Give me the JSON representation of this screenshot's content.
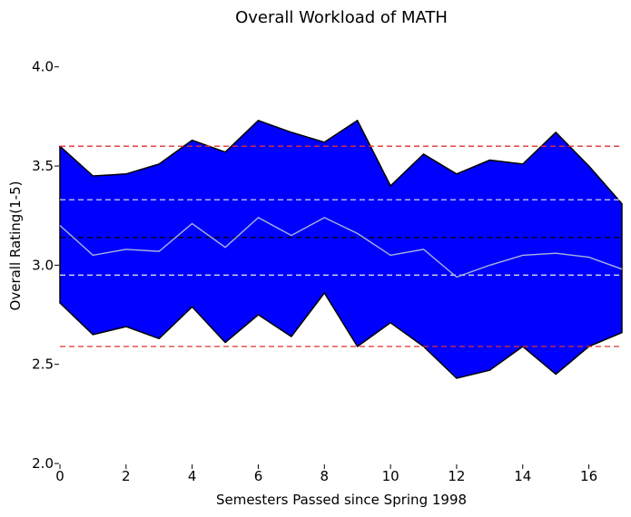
{
  "chart_data": {
    "type": "area",
    "title": "Overall Workload of MATH",
    "xlabel": "Semesters Passed since Spring 1998",
    "ylabel": "Overall Rating(1-5)",
    "xlim": [
      0,
      17
    ],
    "ylim": [
      2.0,
      4.2
    ],
    "xticks": [
      0,
      2,
      4,
      6,
      8,
      10,
      12,
      14,
      16
    ],
    "yticks": [
      2.0,
      2.5,
      3.0,
      3.5,
      4.0
    ],
    "x": [
      0,
      1,
      2,
      3,
      4,
      5,
      6,
      7,
      8,
      9,
      10,
      11,
      12,
      13,
      14,
      15,
      16,
      17
    ],
    "band_upper": [
      3.6,
      3.45,
      3.46,
      3.51,
      3.63,
      3.57,
      3.73,
      3.67,
      3.62,
      3.73,
      3.4,
      3.56,
      3.46,
      3.53,
      3.51,
      3.67,
      3.5,
      3.31
    ],
    "band_lower": [
      2.81,
      2.65,
      2.69,
      2.63,
      2.79,
      2.61,
      2.75,
      2.64,
      2.86,
      2.59,
      2.71,
      2.59,
      2.43,
      2.47,
      2.59,
      2.45,
      2.59,
      2.66
    ],
    "mean_line": [
      3.2,
      3.05,
      3.08,
      3.07,
      3.21,
      3.09,
      3.24,
      3.15,
      3.24,
      3.16,
      3.05,
      3.08,
      2.94,
      3.0,
      3.05,
      3.06,
      3.04,
      2.98
    ],
    "reference_lines": [
      {
        "y": 3.6,
        "color": "#e03030",
        "style": "dashed"
      },
      {
        "y": 3.33,
        "color": "#d8d8e8",
        "style": "dashed"
      },
      {
        "y": 3.14,
        "color": "#000000",
        "style": "dashed"
      },
      {
        "y": 2.95,
        "color": "#d8d8e8",
        "style": "dashed"
      },
      {
        "y": 2.59,
        "color": "#e03030",
        "style": "dashed"
      }
    ],
    "colors": {
      "band_fill": "#0000ff",
      "band_edge": "#000000",
      "mean_line": "#a8b4d8"
    },
    "grid": false,
    "legend": "none"
  }
}
